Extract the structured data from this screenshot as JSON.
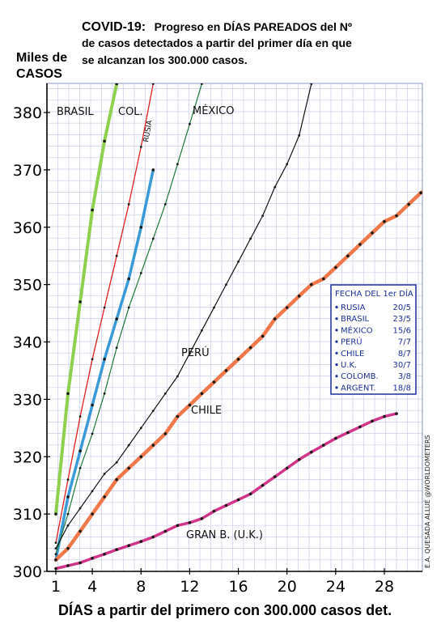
{
  "header": {
    "title_bold": "COVID-19:",
    "title_rest": "Progreso en DÍAS PAREADOS del Nº",
    "line2": "de casos detectados a partir del primer día en que",
    "line3": "se alcanzan  los 300.000 casos."
  },
  "credit": "E.A. QUESADA ALLUÉ @WORLDOMETERS",
  "legend_box": {
    "title": "FECHA DEL 1er DÍA",
    "rows": [
      {
        "name": "RUSIA",
        "date": "20/5"
      },
      {
        "name": "BRASIL",
        "date": "23/5"
      },
      {
        "name": "MÉXICO",
        "date": "15/6"
      },
      {
        "name": "PERÚ",
        "date": "7/7"
      },
      {
        "name": "CHILE",
        "date": "8/7"
      },
      {
        "name": "U.K.",
        "date": "30/7"
      },
      {
        "name": "COLOMB.",
        "date": "3/8"
      },
      {
        "name": "ARGENT.",
        "date": "18/8"
      }
    ]
  },
  "colors": {
    "brasil": "#8fd14f",
    "colombia": "#e02020",
    "rusia": "#3a9ad9",
    "mexico": "#1f7a3a",
    "peru": "#111111",
    "chile": "#f0784a",
    "uk": "#d0358a",
    "argentina": "#1a1a1a",
    "grid": "#c9cfe6",
    "legend_blue": "#1c2f9a"
  },
  "chart_data": {
    "type": "line",
    "ylabel": "Miles de CASOS",
    "xlabel": "DÍAS a partir del primero con 300.000 casos det.",
    "xlim": [
      0,
      33
    ],
    "ylim": [
      300,
      385
    ],
    "xticks": [
      1,
      4,
      8,
      12,
      16,
      20,
      24,
      28
    ],
    "yticks": [
      300,
      310,
      320,
      330,
      340,
      350,
      360,
      370,
      380
    ],
    "series": [
      {
        "name": "BRASIL",
        "key": "brasil",
        "width": 4,
        "x": [
          1,
          2,
          3,
          4,
          5,
          6
        ],
        "y": [
          310,
          331,
          347,
          363,
          375,
          385
        ]
      },
      {
        "name": "COL.",
        "key": "colombia",
        "width": 1.3,
        "x": [
          1,
          2,
          3,
          4,
          5,
          6,
          7,
          8,
          9
        ],
        "y": [
          305,
          316,
          327,
          337,
          346,
          355,
          364,
          374,
          385
        ]
      },
      {
        "name": "RUSIA",
        "key": "rusia",
        "width": 3.5,
        "x": [
          1,
          2,
          3,
          4,
          5,
          6,
          7,
          8,
          9
        ],
        "y": [
          302,
          313,
          321,
          329,
          337,
          344,
          351,
          360,
          370
        ]
      },
      {
        "name": "MÉXICO",
        "key": "mexico",
        "width": 1.2,
        "x": [
          1,
          2,
          3,
          4,
          5,
          6,
          7,
          8,
          9,
          10,
          11,
          12,
          13
        ],
        "y": [
          303,
          310,
          318,
          324,
          331,
          339,
          346,
          352,
          358,
          364,
          371,
          378,
          385
        ]
      },
      {
        "name": "PERÚ",
        "key": "peru",
        "width": 1.2,
        "x": [
          1,
          2,
          3,
          4,
          5,
          6,
          7,
          8,
          9,
          10,
          11,
          12,
          13,
          14,
          15,
          16,
          17,
          18,
          19,
          20,
          21,
          22
        ],
        "y": [
          304,
          308,
          311,
          314,
          317,
          319,
          322,
          325,
          328,
          331,
          334,
          338,
          342,
          346,
          350,
          354,
          358,
          362,
          367,
          371,
          376,
          385
        ]
      },
      {
        "name": "CHILE",
        "key": "chile",
        "width": 4.5,
        "x": [
          1,
          2,
          3,
          4,
          5,
          6,
          7,
          8,
          9,
          10,
          11,
          12,
          13,
          14,
          15,
          16,
          17,
          18,
          19,
          20,
          21,
          22,
          23,
          24,
          25,
          26,
          27,
          28,
          29,
          30,
          31,
          32,
          33
        ],
        "y": [
          302,
          304,
          307,
          310,
          313,
          316,
          318,
          320,
          322,
          324,
          327,
          329,
          331,
          333,
          335,
          337,
          339,
          341,
          344,
          346,
          348,
          350,
          351,
          353,
          355,
          357,
          359,
          361,
          362,
          364,
          366,
          367,
          369
        ]
      },
      {
        "name": "GRAN B. (U.K.)",
        "key": "uk",
        "width": 3.5,
        "x": [
          1,
          2,
          3,
          4,
          5,
          6,
          7,
          8,
          9,
          10,
          11,
          12,
          13,
          14,
          15,
          16,
          17,
          18,
          19,
          20,
          21,
          22,
          23,
          24,
          25,
          26,
          27,
          28,
          29
        ],
        "y": [
          300.5,
          301,
          301.5,
          302.3,
          303,
          303.8,
          304.5,
          305.2,
          306,
          307,
          308,
          308.5,
          309.2,
          310.5,
          311.5,
          312.5,
          313.5,
          315,
          316.5,
          318,
          319.5,
          320.8,
          322,
          323.2,
          324.2,
          325.2,
          326.2,
          327,
          327.5
        ]
      }
    ],
    "labels": [
      {
        "text": "BRASIL",
        "key": "brasil"
      },
      {
        "text": "COL.",
        "key": "colombia"
      },
      {
        "text": "RUSIA",
        "key": "rusia"
      },
      {
        "text": "MÉXICO",
        "key": "mexico"
      },
      {
        "text": "PERÚ",
        "key": "peru"
      },
      {
        "text": "CHILE",
        "key": "chile"
      },
      {
        "text": "GRAN B. (U.K.)",
        "key": "uk"
      }
    ]
  }
}
